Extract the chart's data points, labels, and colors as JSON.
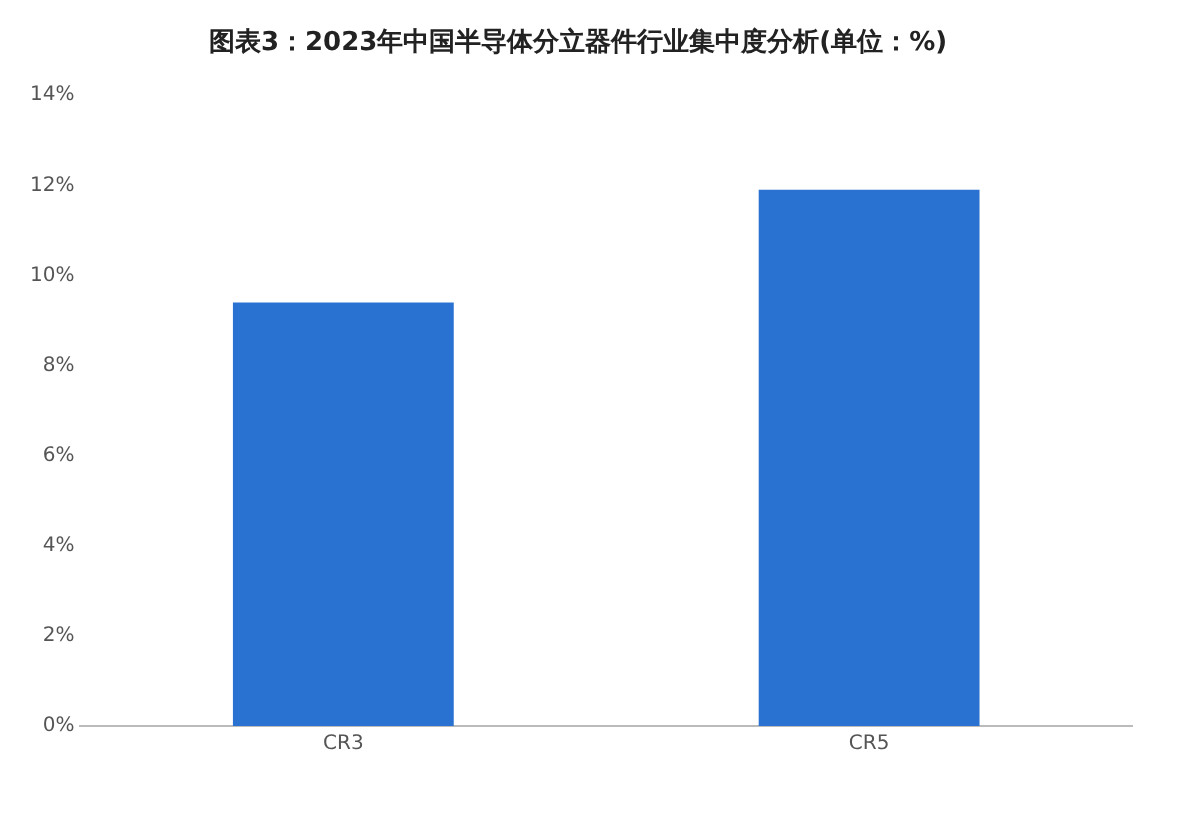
{
  "chart_data": {
    "type": "bar",
    "title": "图表3：2023年中国半导体分立器件行业集中度分析(单位：%)",
    "categories": [
      "CR3",
      "CR5"
    ],
    "values": [
      9.4,
      11.9
    ],
    "color": "#2a72d2",
    "ylim": [
      0,
      14
    ],
    "yticks": [
      {
        "value": 0,
        "label": "0%"
      },
      {
        "value": 2,
        "label": "2%"
      },
      {
        "value": 4,
        "label": "4%"
      },
      {
        "value": 6,
        "label": "6%"
      },
      {
        "value": 8,
        "label": "8%"
      },
      {
        "value": 10,
        "label": "10%"
      },
      {
        "value": 12,
        "label": "12%"
      },
      {
        "value": 14,
        "label": "14%"
      }
    ],
    "grid": false,
    "legend": false
  }
}
